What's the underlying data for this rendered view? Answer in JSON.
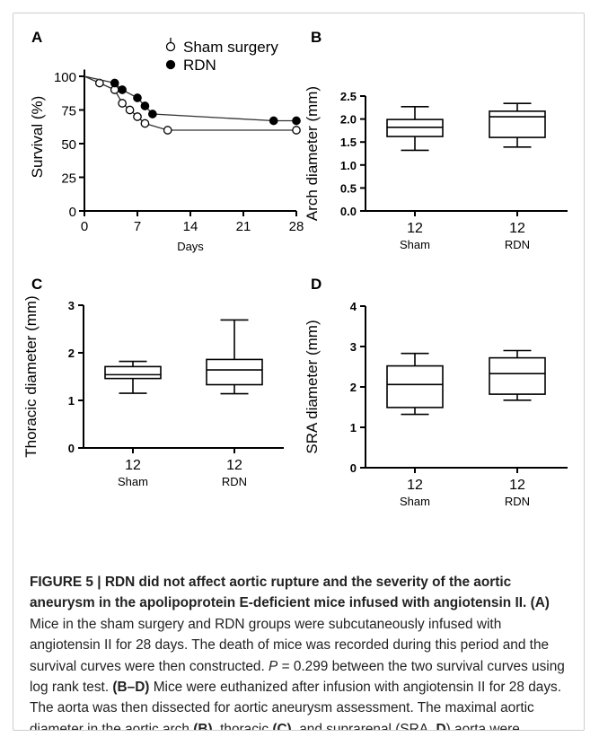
{
  "chart_data": [
    {
      "panel": "A",
      "type": "line",
      "xlabel": "Days",
      "ylabel": "Survival (%)",
      "xlim": [
        0,
        28
      ],
      "ylim": [
        0,
        110
      ],
      "xticks": [
        0,
        7,
        14,
        21,
        28
      ],
      "yticks": [
        0,
        25,
        50,
        75,
        100
      ],
      "legend_position": "top-right",
      "series": [
        {
          "name": "Sham surgery",
          "marker": "open-circle",
          "points": [
            [
              2,
              95
            ],
            [
              4,
              90
            ],
            [
              5,
              80
            ],
            [
              6,
              75
            ],
            [
              7,
              70
            ],
            [
              8,
              65
            ],
            [
              11,
              60
            ],
            [
              28,
              60
            ]
          ]
        },
        {
          "name": "RDN",
          "marker": "filled-circle",
          "points": [
            [
              4,
              95
            ],
            [
              5,
              90
            ],
            [
              7,
              84
            ],
            [
              8,
              78
            ],
            [
              9,
              72
            ],
            [
              25,
              67
            ],
            [
              28,
              67
            ]
          ]
        }
      ]
    },
    {
      "panel": "B",
      "type": "box",
      "ylabel": "Arch diameter (mm)",
      "ylim": [
        0,
        2.5
      ],
      "yticks": [
        "0.0",
        "0.5",
        "1.0",
        "1.5",
        "2.0",
        "2.5"
      ],
      "categories": [
        "Sham",
        "RDN"
      ],
      "n": [
        "12",
        "12"
      ],
      "boxes": [
        {
          "min": 1.32,
          "q1": 1.62,
          "median": 1.82,
          "q3": 1.99,
          "max": 2.27
        },
        {
          "min": 1.39,
          "q1": 1.6,
          "median": 2.05,
          "q3": 2.17,
          "max": 2.34
        }
      ]
    },
    {
      "panel": "C",
      "type": "box",
      "ylabel": "Thoracic diameter (mm)",
      "ylim": [
        0,
        3
      ],
      "yticks": [
        "0",
        "1",
        "2",
        "3"
      ],
      "categories": [
        "Sham",
        "RDN"
      ],
      "n": [
        "12",
        "12"
      ],
      "boxes": [
        {
          "min": 1.15,
          "q1": 1.46,
          "median": 1.54,
          "q3": 1.71,
          "max": 1.82
        },
        {
          "min": 1.14,
          "q1": 1.33,
          "median": 1.64,
          "q3": 1.86,
          "max": 2.69
        }
      ]
    },
    {
      "panel": "D",
      "type": "box",
      "ylabel": "SRA diameter (mm)",
      "ylim": [
        0,
        4
      ],
      "yticks": [
        "0",
        "1",
        "2",
        "3",
        "4"
      ],
      "categories": [
        "Sham",
        "RDN"
      ],
      "n": [
        "12",
        "12"
      ],
      "boxes": [
        {
          "min": 1.32,
          "q1": 1.49,
          "median": 2.06,
          "q3": 2.52,
          "max": 2.83
        },
        {
          "min": 1.67,
          "q1": 1.82,
          "median": 2.33,
          "q3": 2.72,
          "max": 2.9
        }
      ]
    }
  ],
  "caption": {
    "title": "FIGURE 5 | RDN did not affect aortic rupture and the severity of the aortic aneurysm in the apolipoprotein E-deficient mice infused with angiotensin II.",
    "ref_a": "(A)",
    "text_a1": " Mice in the sham surgery and RDN groups were subcutaneously infused with angiotensin II for 28 days. The death of mice was recorded during this period and the survival curves were then constructed. ",
    "p_symbol": "P",
    "text_a2": " = 0.299 between the two survival curves using log rank test. ",
    "ref_bd": "(B–D)",
    "text_bd1": " Mice were euthanized after infusion with angiotensin II for 28 days. The aorta was then dissected for aortic aneurysm assessment. The maximal aortic diameter in the aortic arch ",
    "ref_b": "(B)",
    "text_b": ", thoracic ",
    "ref_c": "(C)",
    "text_c": ", and suprarenal (SRA, ",
    "ref_d": "D",
    "text_d": ") aorta were measured."
  }
}
